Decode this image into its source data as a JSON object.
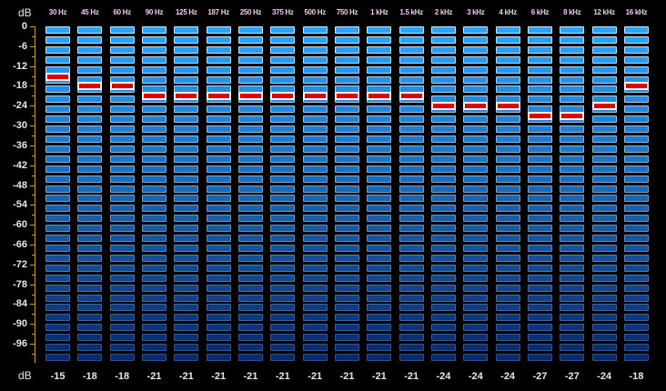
{
  "window": {
    "db_unit_top": "dB",
    "db_unit_bottom": "dB"
  },
  "scale": {
    "labels": [
      "0",
      "-6",
      "-12",
      "-18",
      "-24",
      "-30",
      "-36",
      "-42",
      "-48",
      "-54",
      "-60",
      "-66",
      "-72",
      "-78",
      "-84",
      "-90",
      "-96"
    ],
    "min_db": -100,
    "max_db": 0,
    "segment_db": 3
  },
  "bands": [
    {
      "label": "30 Hz",
      "peak_db": -15,
      "peak_text": "-15"
    },
    {
      "label": "45 Hz",
      "peak_db": -18,
      "peak_text": "-18"
    },
    {
      "label": "60 Hz",
      "peak_db": -18,
      "peak_text": "-18"
    },
    {
      "label": "90 Hz",
      "peak_db": -21,
      "peak_text": "-21"
    },
    {
      "label": "125 Hz",
      "peak_db": -21,
      "peak_text": "-21"
    },
    {
      "label": "187 Hz",
      "peak_db": -21,
      "peak_text": "-21"
    },
    {
      "label": "250 Hz",
      "peak_db": -21,
      "peak_text": "-21"
    },
    {
      "label": "375 Hz",
      "peak_db": -21,
      "peak_text": "-21"
    },
    {
      "label": "500 Hz",
      "peak_db": -21,
      "peak_text": "-21"
    },
    {
      "label": "750 Hz",
      "peak_db": -21,
      "peak_text": "-21"
    },
    {
      "label": "1 kHz",
      "peak_db": -21,
      "peak_text": "-21"
    },
    {
      "label": "1.5 kHz",
      "peak_db": -21,
      "peak_text": "-21"
    },
    {
      "label": "2 kHz",
      "peak_db": -24,
      "peak_text": "-24"
    },
    {
      "label": "3 kHz",
      "peak_db": -24,
      "peak_text": "-24"
    },
    {
      "label": "4 kHz",
      "peak_db": -24,
      "peak_text": "-24"
    },
    {
      "label": "6 kHz",
      "peak_db": -27,
      "peak_text": "-27"
    },
    {
      "label": "8 kHz",
      "peak_db": -27,
      "peak_text": "-27"
    },
    {
      "label": "12 kHz",
      "peak_db": -24,
      "peak_text": "-24"
    },
    {
      "label": "16 kHz",
      "peak_db": -18,
      "peak_text": "-18"
    }
  ],
  "colors": {
    "background": "#000000",
    "axis": "#c9a000",
    "label": "#e8e8e8",
    "freq_label": "#f0c8f0",
    "segment_top": "#2aa4ff",
    "segment_bottom": "#0a2a6a",
    "peak_fill": "#e00000",
    "peak_border": "#f4f4f4"
  }
}
